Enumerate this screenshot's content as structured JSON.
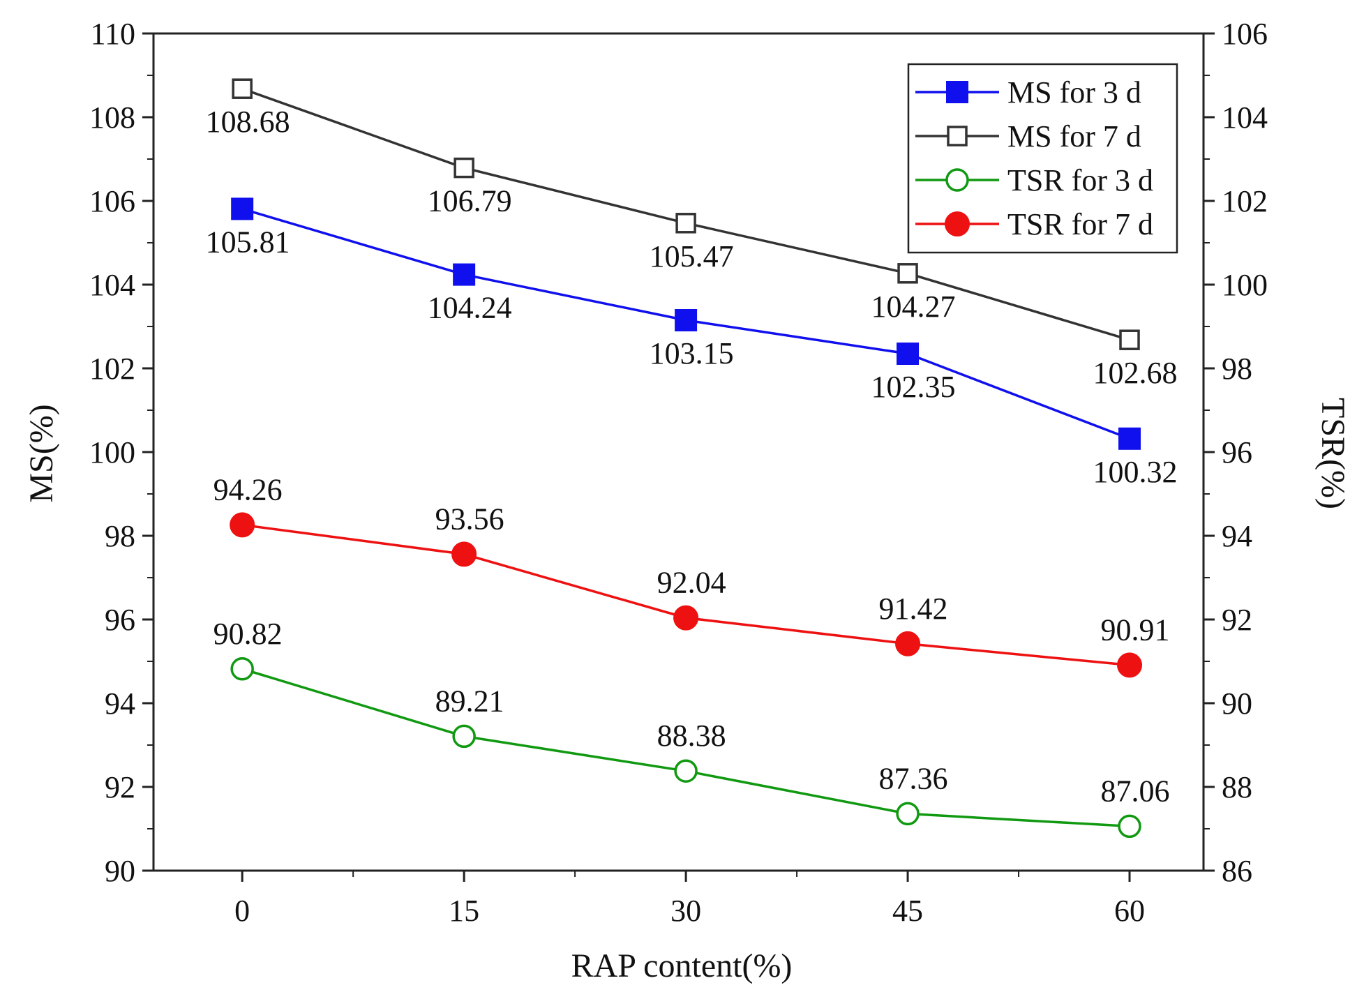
{
  "chart_data": {
    "type": "line",
    "title": "",
    "xlabel": "RAP content(%)",
    "ylabel": "MS(%)",
    "y2label": "TSR(%)",
    "x": [
      0,
      15,
      30,
      45,
      60
    ],
    "x_tick_labels": [
      "0",
      "15",
      "30",
      "45",
      "60"
    ],
    "xlim": [
      -6,
      65
    ],
    "ylim": [
      90,
      110
    ],
    "y2lim": [
      86,
      106
    ],
    "y_ticks": [
      90,
      92,
      94,
      96,
      98,
      100,
      102,
      104,
      106,
      108,
      110
    ],
    "y2_ticks": [
      86,
      88,
      90,
      92,
      94,
      96,
      98,
      100,
      102,
      104,
      106
    ],
    "legend_position": "top-right",
    "series": [
      {
        "name": "MS for 3 d",
        "axis": "left",
        "values": [
          105.81,
          104.24,
          103.15,
          102.35,
          100.32
        ],
        "labels": [
          "105.81",
          "104.24",
          "103.15",
          "102.35",
          "100.32"
        ],
        "color": "#1010ee",
        "marker": "square-filled",
        "label_position": "below"
      },
      {
        "name": "MS for 7 d",
        "axis": "left",
        "values": [
          108.68,
          106.79,
          105.47,
          104.27,
          102.68
        ],
        "labels": [
          "108.68",
          "106.79",
          "105.47",
          "104.27",
          "102.68"
        ],
        "color": "#333333",
        "marker": "square-open",
        "label_position": "below"
      },
      {
        "name": "TSR for 3 d",
        "axis": "right",
        "values": [
          90.82,
          89.21,
          88.38,
          87.36,
          87.06
        ],
        "labels": [
          "90.82",
          "89.21",
          "88.38",
          "87.36",
          "87.06"
        ],
        "color": "#119911",
        "marker": "circle-open",
        "label_position": "above"
      },
      {
        "name": "TSR for 7 d",
        "axis": "right",
        "values": [
          94.26,
          93.56,
          92.04,
          91.42,
          90.91
        ],
        "labels": [
          "94.26",
          "93.56",
          "92.04",
          "91.42",
          "90.91"
        ],
        "color": "#ee1111",
        "marker": "circle-filled",
        "label_position": "above"
      }
    ]
  }
}
